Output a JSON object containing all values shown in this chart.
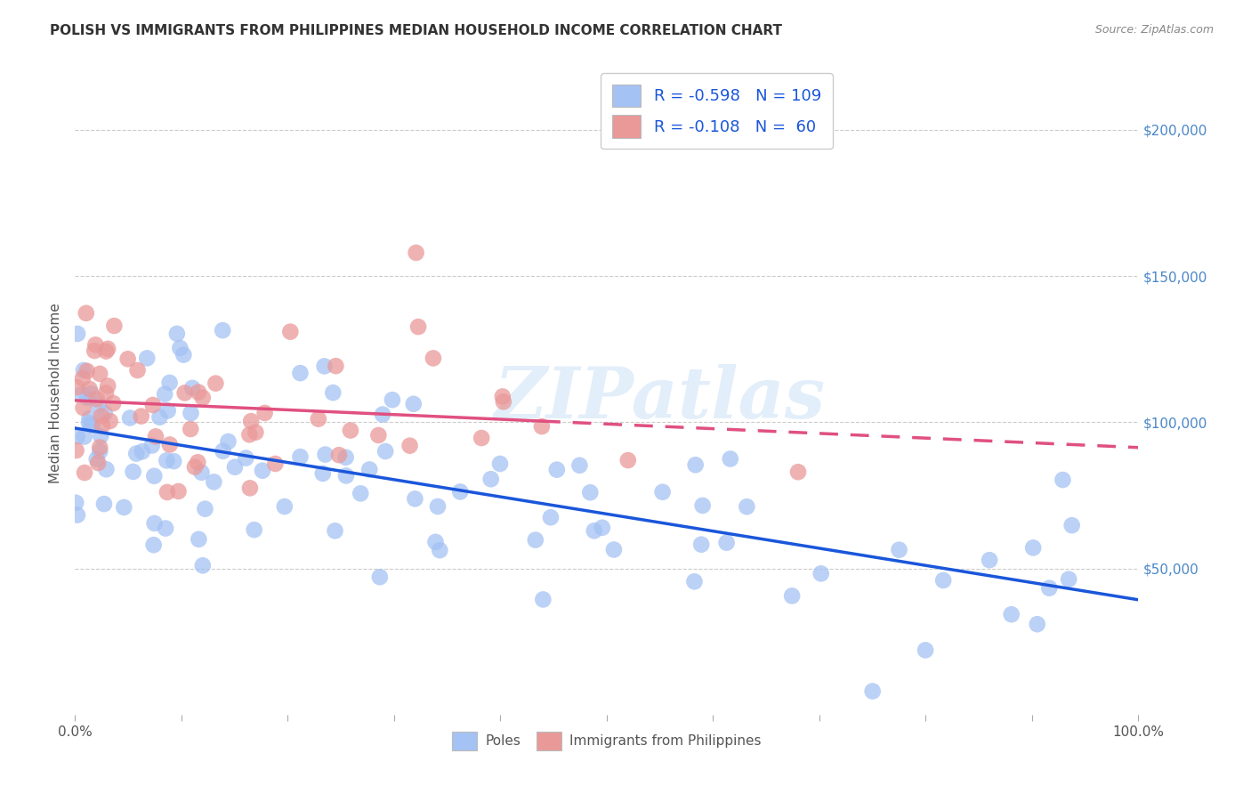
{
  "title": "POLISH VS IMMIGRANTS FROM PHILIPPINES MEDIAN HOUSEHOLD INCOME CORRELATION CHART",
  "source": "Source: ZipAtlas.com",
  "ylabel": "Median Household Income",
  "r1": "-0.598",
  "n1": "109",
  "r2": "-0.108",
  "n2": "60",
  "legend_label_1": "Poles",
  "legend_label_2": "Immigrants from Philippines",
  "color_blue": "#a4c2f4",
  "color_blue_edge": "#6d9eeb",
  "color_pink": "#ea9999",
  "color_pink_edge": "#e06666",
  "color_blue_line": "#1a56db",
  "color_pink_line": "#e05080",
  "ytick_labels": [
    "$50,000",
    "$100,000",
    "$150,000",
    "$200,000"
  ],
  "ytick_values": [
    50000,
    100000,
    150000,
    200000
  ],
  "yaxis_color": "#4a86c8",
  "legend_text_color": "#1a56db",
  "watermark_text": "ZIPatlas",
  "xmin": 0,
  "xmax": 100,
  "ymin": 0,
  "ymax": 220000,
  "background_color": "#ffffff",
  "grid_color": "#c0c0c0",
  "title_color": "#333333",
  "source_color": "#888888",
  "ylabel_color": "#555555"
}
